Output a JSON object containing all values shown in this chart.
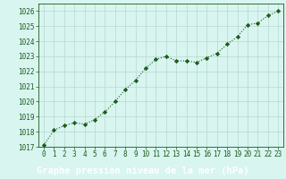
{
  "x": [
    0,
    1,
    2,
    3,
    4,
    5,
    6,
    7,
    8,
    9,
    10,
    11,
    12,
    13,
    14,
    15,
    16,
    17,
    18,
    19,
    20,
    21,
    22,
    23
  ],
  "y": [
    1017.1,
    1018.1,
    1018.4,
    1018.6,
    1018.5,
    1018.8,
    1019.3,
    1020.0,
    1020.8,
    1021.4,
    1022.2,
    1022.8,
    1023.0,
    1022.7,
    1022.7,
    1022.6,
    1022.9,
    1023.2,
    1023.8,
    1024.3,
    1025.1,
    1025.2,
    1025.7,
    1026.0
  ],
  "line_color": "#1a5c1a",
  "marker": "D",
  "marker_size": 2.2,
  "background_color": "#d8f5f0",
  "grid_color": "#b8d8d0",
  "xlabel": "Graphe pression niveau de la mer (hPa)",
  "xlabel_fontsize": 7.5,
  "xlabel_color": "#1a5c1a",
  "footer_bg": "#2d7a2d",
  "ylim": [
    1017,
    1026.5
  ],
  "yticks": [
    1017,
    1018,
    1019,
    1020,
    1021,
    1022,
    1023,
    1024,
    1025,
    1026
  ],
  "xticks": [
    0,
    1,
    2,
    3,
    4,
    5,
    6,
    7,
    8,
    9,
    10,
    11,
    12,
    13,
    14,
    15,
    16,
    17,
    18,
    19,
    20,
    21,
    22,
    23
  ],
  "tick_fontsize": 5.5,
  "tick_color": "#1a5c1a",
  "spine_color": "#1a5c1a",
  "line_width": 0.8,
  "line_style": "dotted"
}
